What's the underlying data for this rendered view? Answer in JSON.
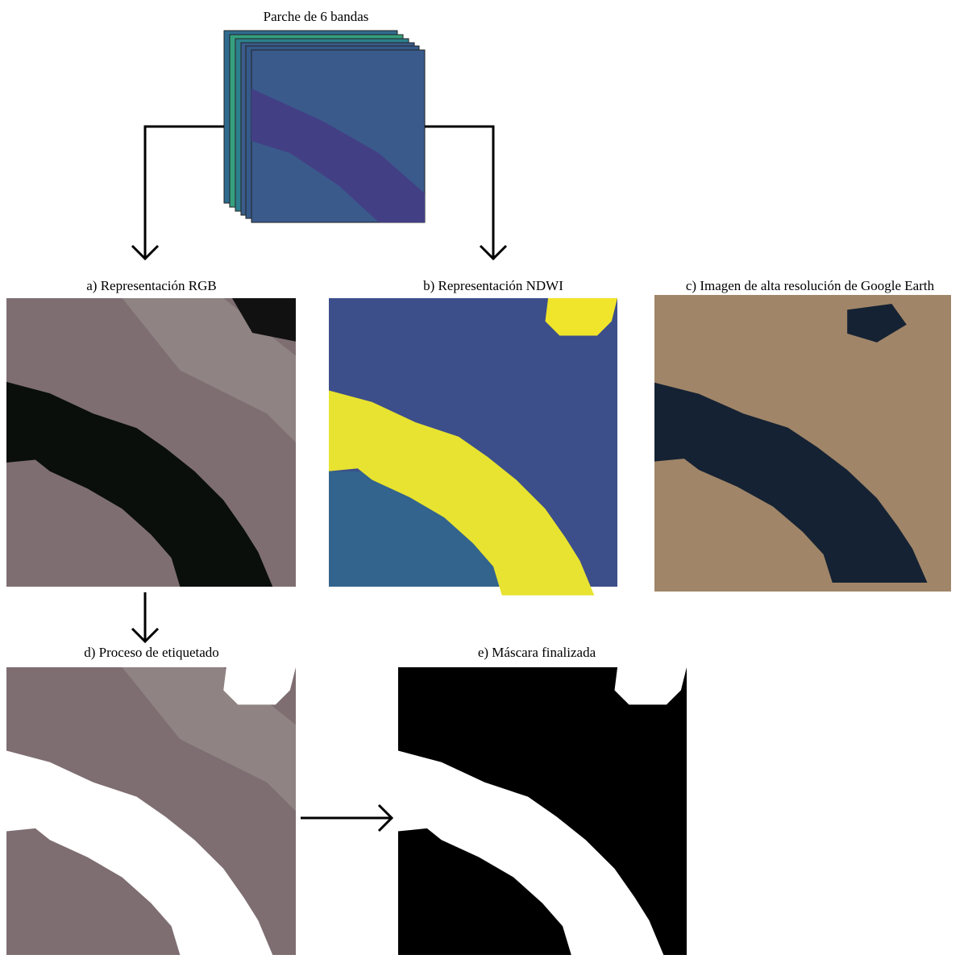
{
  "stack_title": "Parche de 6 bandas",
  "panels": [
    {
      "label": "a) Representación RGB"
    },
    {
      "label": "b) Representación NDWI"
    },
    {
      "label": "c) Imagen de alta resolución de Google Earth"
    },
    {
      "label": "d) Proceso de etiquetado"
    },
    {
      "label": "e) Máscara finalizada"
    }
  ]
}
